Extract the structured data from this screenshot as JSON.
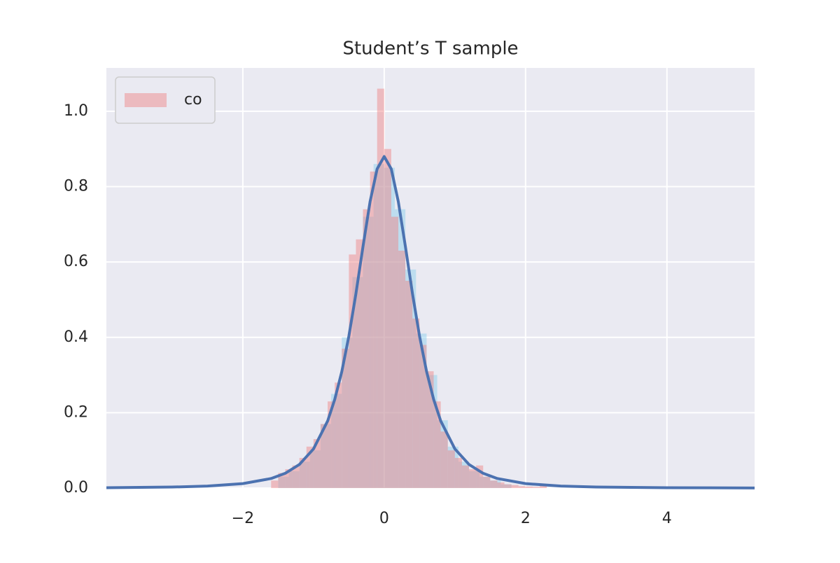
{
  "chart_data": {
    "type": "histogram",
    "title": "Student’s T sample",
    "xlim": [
      -3.93,
      5.24
    ],
    "ylim": [
      0,
      1.115
    ],
    "xticks": [
      {
        "value": -2,
        "label": "−2"
      },
      0,
      2,
      4
    ],
    "yticks": [
      {
        "value": 0,
        "label": "0.0"
      },
      0.2,
      0.4,
      0.6,
      0.8,
      {
        "value": 1,
        "label": "1.0"
      }
    ],
    "grid": true,
    "legend": "upper left",
    "series": [
      {
        "type": "histogram",
        "color": "#87ceeb",
        "bins": [
          -1.5,
          -1.35,
          -1.2,
          -1.05,
          -0.9,
          -0.75,
          -0.6,
          -0.45,
          -0.3,
          -0.15,
          0,
          0.15,
          0.3,
          0.45,
          0.6,
          0.75,
          0.9,
          1.05,
          1.2,
          1.35,
          1.5,
          1.65,
          1.8
        ],
        "values": [
          0.03,
          0.045,
          0.07,
          0.1,
          0.17,
          0.25,
          0.4,
          0.56,
          0.72,
          0.86,
          0.85,
          0.74,
          0.58,
          0.41,
          0.3,
          0.18,
          0.11,
          0.07,
          0.045,
          0.03,
          0.02,
          0.01
        ]
      },
      {
        "type": "histogram",
        "name": "co",
        "color": "#f08080",
        "bins": [
          -1.6,
          -1.5,
          -1.4,
          -1.3,
          -1.2,
          -1.1,
          -1.0,
          -0.9,
          -0.8,
          -0.7,
          -0.6,
          -0.5,
          -0.4,
          -0.3,
          -0.2,
          -0.1,
          0,
          0.1,
          0.2,
          0.3,
          0.4,
          0.5,
          0.6,
          0.7,
          0.8,
          0.9,
          1.0,
          1.1,
          1.2,
          1.3,
          1.4,
          1.5,
          1.6,
          1.7,
          1.8,
          1.9,
          2.0,
          2.1,
          2.2,
          2.3
        ],
        "values": [
          0.02,
          0.04,
          0.05,
          0.06,
          0.08,
          0.11,
          0.13,
          0.17,
          0.23,
          0.28,
          0.37,
          0.62,
          0.66,
          0.74,
          0.84,
          1.06,
          0.9,
          0.72,
          0.63,
          0.55,
          0.45,
          0.38,
          0.31,
          0.23,
          0.15,
          0.1,
          0.08,
          0.06,
          0.05,
          0.06,
          0.03,
          0.02,
          0.015,
          0.01,
          0.008,
          0.005,
          0.004,
          0.003,
          0.01
        ]
      },
      {
        "type": "line",
        "color": "#4c72b0",
        "x": [
          -3.93,
          -3,
          -2.5,
          -2,
          -1.6,
          -1.4,
          -1.2,
          -1,
          -0.8,
          -0.7,
          -0.6,
          -0.5,
          -0.4,
          -0.3,
          -0.2,
          -0.1,
          0,
          0.1,
          0.2,
          0.3,
          0.4,
          0.5,
          0.6,
          0.7,
          0.8,
          1,
          1.2,
          1.4,
          1.6,
          2,
          2.5,
          3,
          4,
          5.24
        ],
        "values": [
          0.00095,
          0.0027,
          0.0053,
          0.0118,
          0.0254,
          0.0392,
          0.0626,
          0.104,
          0.178,
          0.235,
          0.309,
          0.403,
          0.516,
          0.641,
          0.76,
          0.847,
          0.88,
          0.847,
          0.76,
          0.641,
          0.516,
          0.403,
          0.309,
          0.235,
          0.178,
          0.104,
          0.0626,
          0.0392,
          0.0254,
          0.0118,
          0.0053,
          0.0027,
          0.00089,
          0.00031
        ]
      }
    ]
  }
}
